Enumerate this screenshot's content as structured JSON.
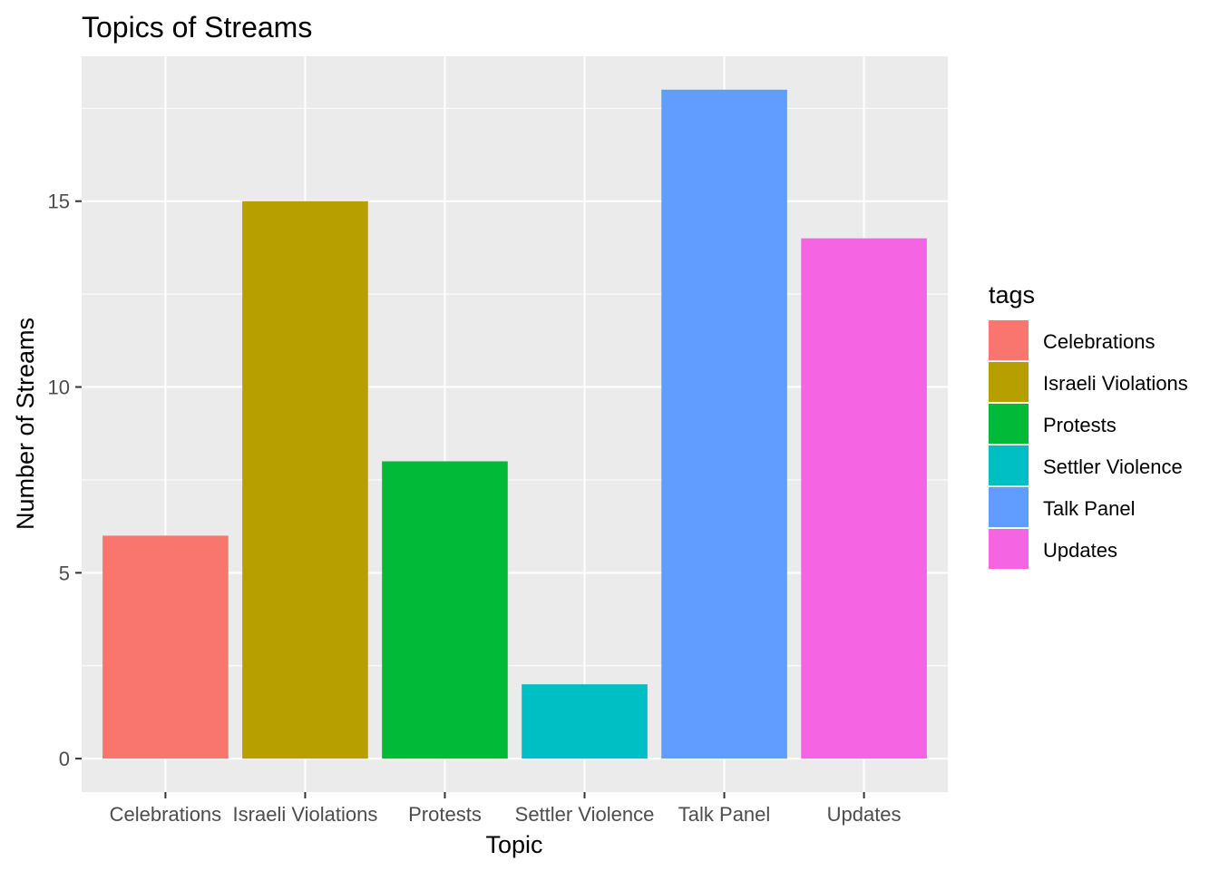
{
  "chart_data": {
    "type": "bar",
    "title": "Topics of Streams",
    "xlabel": "Topic",
    "ylabel": "Number of Streams",
    "categories": [
      "Celebrations",
      "Israeli Violations",
      "Protests",
      "Settler Violence",
      "Talk Panel",
      "Updates"
    ],
    "values": [
      6,
      15,
      8,
      2,
      18,
      14
    ],
    "colors": [
      "#F8766D",
      "#B79F00",
      "#00BA38",
      "#00BFC4",
      "#619CFF",
      "#F564E3"
    ],
    "ylim": [
      -0.9,
      18.9
    ],
    "yticks": [
      0,
      5,
      10,
      15
    ],
    "ytick_labels": [
      "0",
      "5",
      "10",
      "15"
    ],
    "grid": true,
    "panel_background": "#EBEBEB",
    "gridline_color": "#FFFFFF",
    "legend": {
      "title": "tags",
      "position": "right",
      "entries": [
        "Celebrations",
        "Israeli Violations",
        "Protests",
        "Settler Violence",
        "Talk Panel",
        "Updates"
      ]
    }
  }
}
